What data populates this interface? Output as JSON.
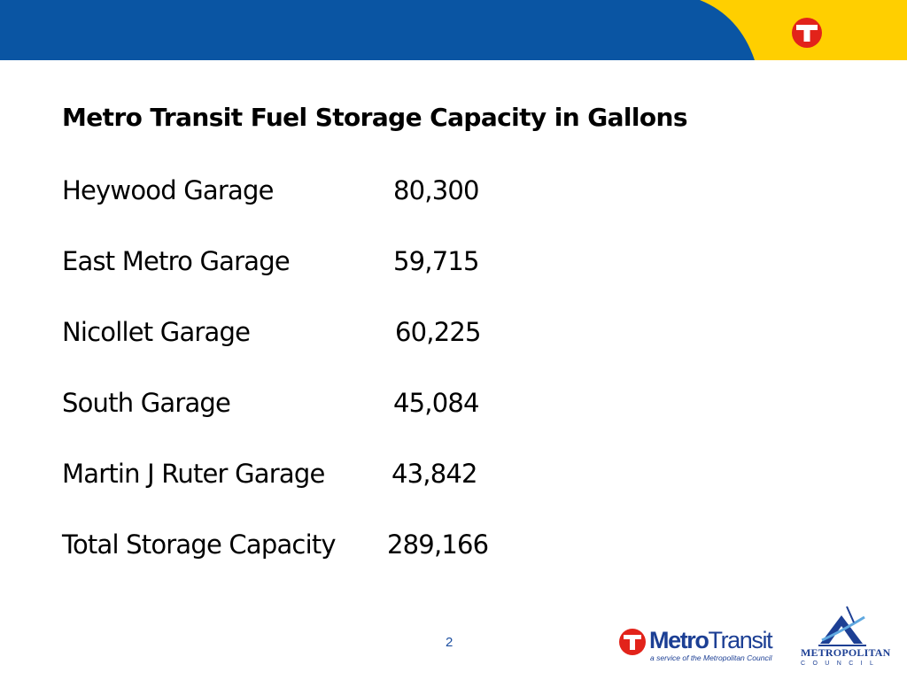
{
  "slide": {
    "title": "Metro Transit Fuel Storage Capacity in Gallons",
    "rows": [
      {
        "label": "Heywood Garage",
        "value": "80,300"
      },
      {
        "label": "East Metro Garage",
        "value": "59,715"
      },
      {
        "label": "Nicollet Garage",
        "value": "60,225"
      },
      {
        "label": "South Garage",
        "value": "45,084"
      },
      {
        "label": "Martin J Ruter Garage",
        "value": "43,842"
      },
      {
        "label": "Total Storage Capacity",
        "value": "289,166"
      }
    ],
    "page_number": "2"
  },
  "branding": {
    "metro_transit_word_1": "Metro",
    "metro_transit_word_2": "Transit",
    "metro_transit_tagline": "a service of the Metropolitan Council",
    "metropolitan_council_word": "METROPOLITAN",
    "metropolitan_council_sub": "COUNCIL",
    "header_icon": "metro-transit-t-icon"
  },
  "colors": {
    "header_blue": "#0a55a3",
    "header_yellow": "#ffcf00",
    "logo_red": "#e2231a",
    "logo_blue": "#1c3f94"
  }
}
